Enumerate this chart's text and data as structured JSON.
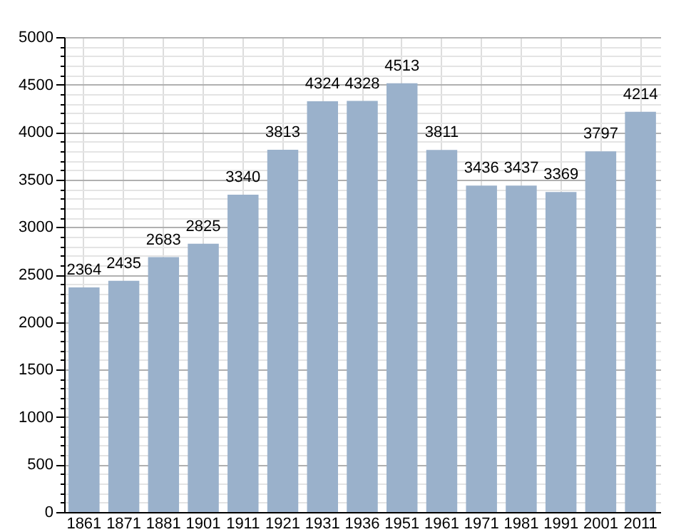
{
  "chart_data": {
    "type": "bar",
    "categories": [
      "1861",
      "1871",
      "1881",
      "1901",
      "1911",
      "1921",
      "1931",
      "1936",
      "1951",
      "1961",
      "1971",
      "1981",
      "1991",
      "2001",
      "2011"
    ],
    "values": [
      2364,
      2435,
      2683,
      2825,
      3340,
      3813,
      4324,
      4328,
      4513,
      3811,
      3436,
      3437,
      3369,
      3797,
      4214
    ],
    "color": "#9ab1cb",
    "ylim": [
      0,
      5000
    ],
    "yticks": [
      0,
      {
        "value": 100,
        "label": null
      },
      {
        "value": 200,
        "label": null
      },
      {
        "value": 300,
        "label": null
      },
      {
        "value": 400,
        "label": null
      },
      500,
      {
        "value": 600,
        "label": null
      },
      {
        "value": 700,
        "label": null
      },
      {
        "value": 800,
        "label": null
      },
      {
        "value": 900,
        "label": null
      },
      1000,
      {
        "value": 1100,
        "label": null
      },
      {
        "value": 1200,
        "label": null
      },
      {
        "value": 1300,
        "label": null
      },
      {
        "value": 1400,
        "label": null
      },
      1500,
      {
        "value": 1600,
        "label": null
      },
      {
        "value": 1700,
        "label": null
      },
      {
        "value": 1800,
        "label": null
      },
      {
        "value": 1900,
        "label": null
      },
      2000,
      {
        "value": 2100,
        "label": null
      },
      {
        "value": 2200,
        "label": null
      },
      {
        "value": 2300,
        "label": null
      },
      {
        "value": 2400,
        "label": null
      },
      2500,
      {
        "value": 2600,
        "label": null
      },
      {
        "value": 2700,
        "label": null
      },
      {
        "value": 2800,
        "label": null
      },
      {
        "value": 2900,
        "label": null
      },
      3000,
      {
        "value": 3100,
        "label": null
      },
      {
        "value": 3200,
        "label": null
      },
      {
        "value": 3300,
        "label": null
      },
      {
        "value": 3400,
        "label": null
      },
      3500,
      {
        "value": 3600,
        "label": null
      },
      {
        "value": 3700,
        "label": null
      },
      {
        "value": 3800,
        "label": null
      },
      {
        "value": 3900,
        "label": null
      },
      4000,
      {
        "value": 4100,
        "label": null
      },
      {
        "value": 4200,
        "label": null
      },
      {
        "value": 4300,
        "label": null
      },
      {
        "value": 4400,
        "label": null
      },
      4500,
      {
        "value": 4600,
        "label": null
      },
      {
        "value": 4700,
        "label": null
      },
      {
        "value": 4800,
        "label": null
      },
      {
        "value": 4900,
        "label": null
      },
      5000
    ],
    "grid": true,
    "data_labels": true
  }
}
